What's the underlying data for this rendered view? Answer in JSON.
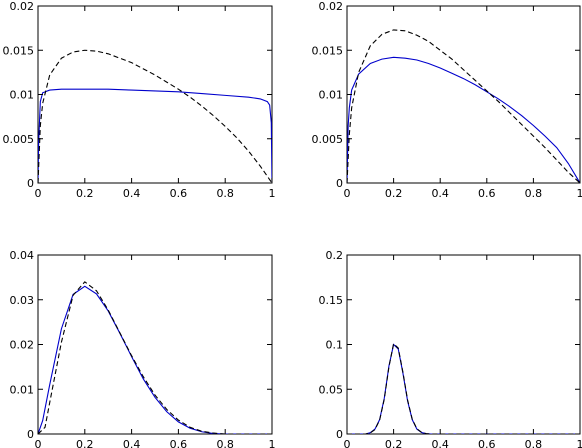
{
  "colors": {
    "series_solid": "#0000cc",
    "series_dashed": "#000000",
    "frame": "#000000"
  },
  "chart_data": [
    {
      "type": "line",
      "title": "",
      "xlabel": "",
      "ylabel": "",
      "xlim": [
        0,
        1
      ],
      "ylim": [
        0,
        0.02
      ],
      "xticks": [
        "0",
        "0.2",
        "0.4",
        "0.6",
        "0.8",
        "1"
      ],
      "yticks": [
        "0",
        "0.005",
        "0.01",
        "0.015",
        "0.02"
      ],
      "grid": false,
      "series": [
        {
          "style": "solid",
          "x": [
            0,
            0.003,
            0.01,
            0.02,
            0.05,
            0.1,
            0.2,
            0.3,
            0.4,
            0.5,
            0.6,
            0.7,
            0.8,
            0.9,
            0.95,
            0.98,
            0.99,
            0.997,
            1
          ],
          "y": [
            0,
            0.0048,
            0.0092,
            0.0102,
            0.0105,
            0.0106,
            0.0106,
            0.0106,
            0.0105,
            0.0104,
            0.0103,
            0.0101,
            0.0099,
            0.0097,
            0.0095,
            0.0092,
            0.0088,
            0.0068,
            0
          ]
        },
        {
          "style": "dashed",
          "x": [
            0,
            0.01,
            0.02,
            0.05,
            0.1,
            0.15,
            0.2,
            0.25,
            0.3,
            0.35,
            0.4,
            0.45,
            0.5,
            0.55,
            0.6,
            0.65,
            0.7,
            0.75,
            0.8,
            0.85,
            0.9,
            0.95,
            1
          ],
          "y": [
            0,
            0.0065,
            0.009,
            0.0122,
            0.0141,
            0.0148,
            0.015,
            0.0149,
            0.0146,
            0.0141,
            0.0136,
            0.0129,
            0.0122,
            0.0114,
            0.0106,
            0.0097,
            0.0087,
            0.0076,
            0.0064,
            0.0051,
            0.0036,
            0.0019,
            0
          ]
        }
      ]
    },
    {
      "type": "line",
      "title": "",
      "xlabel": "",
      "ylabel": "",
      "xlim": [
        0,
        1
      ],
      "ylim": [
        0,
        0.02
      ],
      "xticks": [
        "0",
        "0.2",
        "0.4",
        "0.6",
        "0.8",
        "1"
      ],
      "yticks": [
        "0",
        "0.005",
        "0.01",
        "0.015",
        "0.02"
      ],
      "grid": false,
      "series": [
        {
          "style": "solid",
          "x": [
            0,
            0.005,
            0.01,
            0.02,
            0.05,
            0.1,
            0.15,
            0.2,
            0.25,
            0.3,
            0.35,
            0.4,
            0.45,
            0.5,
            0.55,
            0.6,
            0.65,
            0.7,
            0.75,
            0.8,
            0.85,
            0.9,
            0.95,
            1
          ],
          "y": [
            0,
            0.0065,
            0.0085,
            0.0105,
            0.0123,
            0.0135,
            0.014,
            0.0142,
            0.0141,
            0.0139,
            0.0135,
            0.013,
            0.0124,
            0.0118,
            0.0111,
            0.0103,
            0.0095,
            0.0086,
            0.0076,
            0.0065,
            0.0053,
            0.004,
            0.0022,
            0
          ]
        },
        {
          "style": "dashed",
          "x": [
            0,
            0.01,
            0.02,
            0.05,
            0.1,
            0.15,
            0.2,
            0.25,
            0.3,
            0.35,
            0.4,
            0.45,
            0.5,
            0.55,
            0.6,
            0.65,
            0.7,
            0.75,
            0.8,
            0.85,
            0.9,
            0.95,
            1
          ],
          "y": [
            0,
            0.0055,
            0.0085,
            0.0125,
            0.0155,
            0.0168,
            0.0173,
            0.0172,
            0.0167,
            0.016,
            0.015,
            0.014,
            0.0128,
            0.0116,
            0.0104,
            0.0092,
            0.0079,
            0.0066,
            0.0053,
            0.004,
            0.0026,
            0.0012,
            0
          ]
        }
      ]
    },
    {
      "type": "line",
      "title": "",
      "xlabel": "",
      "ylabel": "",
      "xlim": [
        0,
        1
      ],
      "ylim": [
        0,
        0.04
      ],
      "xticks": [
        "0",
        "0.2",
        "0.4",
        "0.6",
        "0.8",
        "1"
      ],
      "yticks": [
        "0",
        "0.01",
        "0.02",
        "0.03",
        "0.04"
      ],
      "grid": false,
      "series": [
        {
          "style": "solid",
          "x": [
            0,
            0.02,
            0.05,
            0.1,
            0.15,
            0.2,
            0.25,
            0.3,
            0.35,
            0.4,
            0.45,
            0.5,
            0.55,
            0.6,
            0.65,
            0.7,
            0.75,
            0.8,
            1
          ],
          "y": [
            0,
            0.003,
            0.011,
            0.0235,
            0.0312,
            0.033,
            0.0313,
            0.0275,
            0.0225,
            0.0173,
            0.0123,
            0.0082,
            0.005,
            0.0027,
            0.0013,
            0.0005,
            0.0001,
            0,
            0
          ]
        },
        {
          "style": "dashed",
          "x": [
            0,
            0.03,
            0.05,
            0.1,
            0.15,
            0.2,
            0.25,
            0.3,
            0.35,
            0.4,
            0.45,
            0.5,
            0.55,
            0.6,
            0.65,
            0.7,
            0.75,
            0.8,
            1
          ],
          "y": [
            0,
            0.0015,
            0.007,
            0.0205,
            0.031,
            0.034,
            0.032,
            0.0277,
            0.0226,
            0.0175,
            0.0128,
            0.0087,
            0.0055,
            0.0031,
            0.0015,
            0.0006,
            0.0002,
            0,
            0
          ]
        }
      ]
    },
    {
      "type": "line",
      "title": "",
      "xlabel": "",
      "ylabel": "",
      "xlim": [
        0,
        1
      ],
      "ylim": [
        0,
        0.2
      ],
      "xticks": [
        "0",
        "0.2",
        "0.4",
        "0.6",
        "0.8",
        "1"
      ],
      "yticks": [
        "0",
        "0.05",
        "0.1",
        "0.15",
        "0.2"
      ],
      "grid": false,
      "series": [
        {
          "style": "solid",
          "x": [
            0,
            0.08,
            0.1,
            0.12,
            0.14,
            0.16,
            0.18,
            0.2,
            0.22,
            0.24,
            0.26,
            0.28,
            0.3,
            0.32,
            0.34,
            0.36,
            0.4,
            1
          ],
          "y": [
            0,
            0,
            0.0015,
            0.0055,
            0.016,
            0.04,
            0.076,
            0.1,
            0.095,
            0.068,
            0.037,
            0.016,
            0.0055,
            0.0017,
            0.0004,
            0,
            0,
            0
          ]
        },
        {
          "style": "dashed",
          "x": [
            0,
            0.08,
            0.1,
            0.12,
            0.14,
            0.16,
            0.18,
            0.2,
            0.22,
            0.24,
            0.26,
            0.28,
            0.3,
            0.32,
            0.34,
            0.36,
            0.4,
            1
          ],
          "y": [
            0,
            0,
            0.0012,
            0.005,
            0.0155,
            0.039,
            0.075,
            0.101,
            0.096,
            0.069,
            0.038,
            0.0165,
            0.0058,
            0.0018,
            0.0004,
            0,
            0,
            0
          ]
        }
      ]
    }
  ]
}
